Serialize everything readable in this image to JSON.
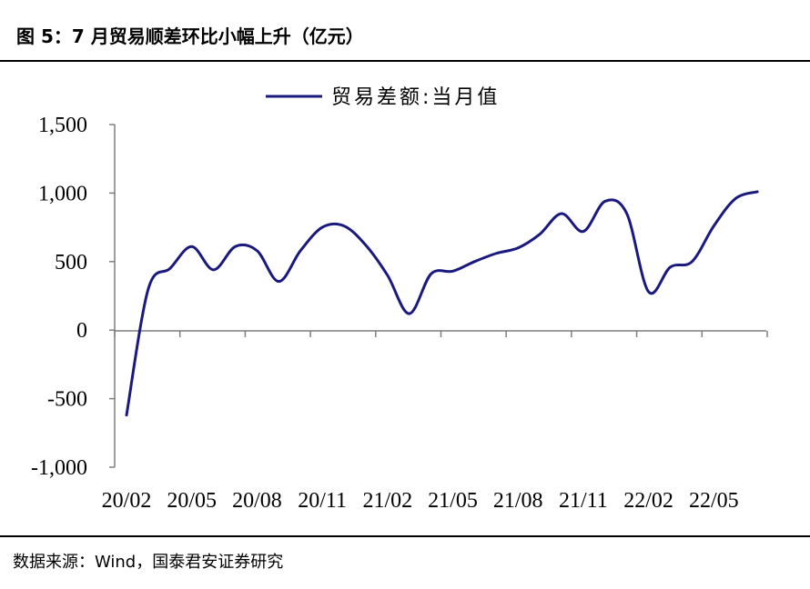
{
  "title": "图 5：7 月贸易顺差环比小幅上升（亿元）",
  "source": "数据来源：Wind，国泰君安证券研究",
  "chart_data": {
    "type": "line",
    "legend": {
      "label": "贸易差额:当月值",
      "position": "top-center"
    },
    "ylim": [
      -1000,
      1500
    ],
    "yticks": [
      1500,
      1000,
      500,
      0,
      -500,
      -1000
    ],
    "ytick_labels": [
      "1,500",
      "1,000",
      "500",
      "0",
      "-500",
      "-1,000"
    ],
    "xtick_labels": [
      "20/02",
      "20/05",
      "20/08",
      "20/11",
      "21/02",
      "21/05",
      "21/08",
      "21/11",
      "22/02",
      "22/05"
    ],
    "x": [
      "20/02",
      "20/03",
      "20/04",
      "20/05",
      "20/06",
      "20/07",
      "20/08",
      "20/09",
      "20/10",
      "20/11",
      "20/12",
      "21/01",
      "21/02",
      "21/03",
      "21/04",
      "21/05",
      "21/06",
      "21/07",
      "21/08",
      "21/09",
      "21/10",
      "21/11",
      "21/12",
      "22/01",
      "22/02",
      "22/03",
      "22/04",
      "22/05",
      "22/06",
      "22/07"
    ],
    "series": [
      {
        "name": "贸易差额:当月值",
        "color": "#1a1a7e",
        "values": [
          -620,
          300,
          450,
          610,
          440,
          610,
          580,
          355,
          580,
          750,
          760,
          620,
          400,
          120,
          410,
          430,
          500,
          560,
          600,
          700,
          850,
          720,
          940,
          850,
          280,
          460,
          500,
          760,
          960,
          1010
        ]
      }
    ]
  }
}
